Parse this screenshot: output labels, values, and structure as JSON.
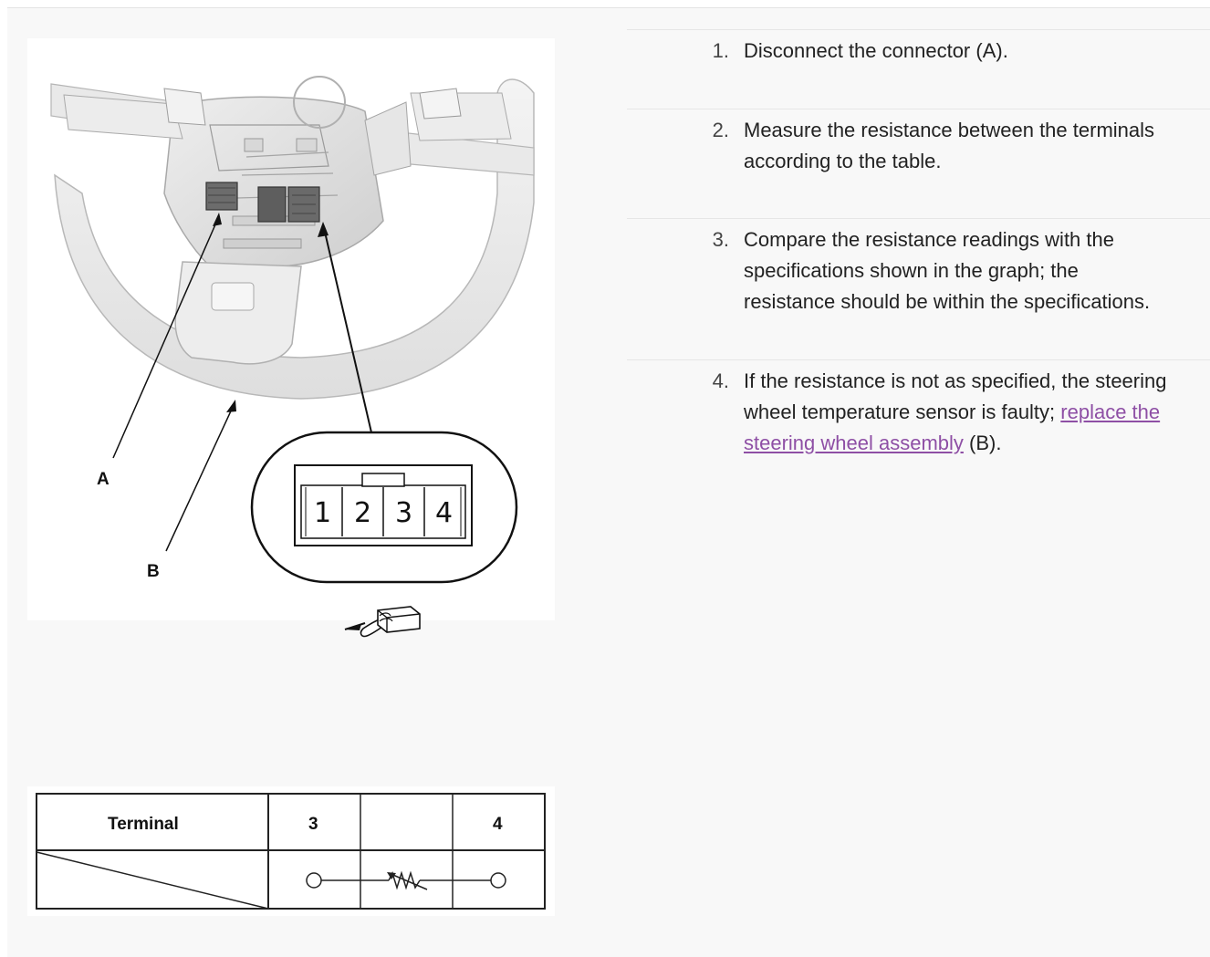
{
  "figure": {
    "callouts": {
      "a": "A",
      "b": "B"
    },
    "connector_pins": [
      "1",
      "2",
      "3",
      "4"
    ],
    "tool_icon": "back-probe-tool-icon"
  },
  "table": {
    "header_label": "Terminal",
    "terminal_left": "3",
    "terminal_right": "4",
    "symbol": "thermistor-resistor-symbol"
  },
  "steps": [
    {
      "num": "1.",
      "text": "Disconnect the connector (A)."
    },
    {
      "num": "2.",
      "text": "Measure the resistance between the terminals according to the table."
    },
    {
      "num": "3.",
      "text": "Compare the resistance readings with the specifications shown in the graph; the resistance should be within the specifications."
    },
    {
      "num": "4.",
      "text_before": "If the resistance is not as specified, the steering wheel temperature sensor is faulty; ",
      "link": "replace the steering wheel assembly",
      "text_after": " (B)."
    }
  ],
  "colors": {
    "link": "#8e4fa5",
    "divider": "#e6e6e6",
    "page_bg": "#f8f8f8"
  }
}
